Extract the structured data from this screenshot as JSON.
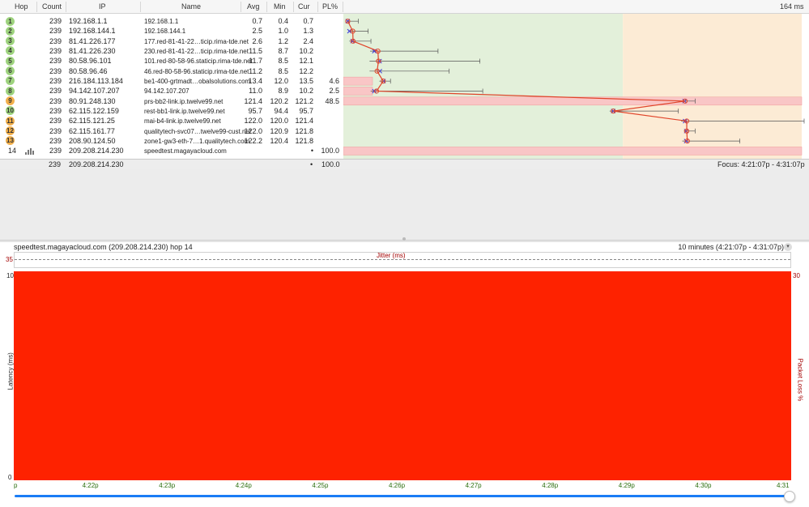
{
  "header": {
    "hop": "Hop",
    "count": "Count",
    "ip": "IP",
    "name": "Name",
    "avg": "Avg",
    "min": "Min",
    "cur": "Cur",
    "pl": "PL%",
    "scale_max": "164 ms"
  },
  "scale_max_ms": 164,
  "hops": [
    {
      "hop": "1",
      "count": "239",
      "ip": "192.168.1.1",
      "name": "192.168.1.1",
      "avg": "0.7",
      "min": "0.4",
      "cur": "0.7",
      "pl": "",
      "max_ms": 4.5,
      "pl_val": 0,
      "color": "#9ed37e"
    },
    {
      "hop": "2",
      "count": "239",
      "ip": "192.168.144.1",
      "name": "192.168.144.1",
      "avg": "2.5",
      "min": "1.0",
      "cur": "1.3",
      "pl": "",
      "max_ms": 8,
      "pl_val": 0,
      "color": "#9ed37e"
    },
    {
      "hop": "3",
      "count": "239",
      "ip": "81.41.226.177",
      "name": "177.red-81-41-22…ticip.rima-tde.net",
      "avg": "2.6",
      "min": "1.2",
      "cur": "2.4",
      "pl": "",
      "max_ms": 9,
      "pl_val": 0,
      "color": "#9ed37e"
    },
    {
      "hop": "4",
      "count": "239",
      "ip": "81.41.226.230",
      "name": "230.red-81-41-22…ticip.rima-tde.net",
      "avg": "11.5",
      "min": "8.7",
      "cur": "10.2",
      "pl": "",
      "max_ms": 33,
      "pl_val": 0,
      "color": "#9ed37e"
    },
    {
      "hop": "5",
      "count": "239",
      "ip": "80.58.96.101",
      "name": "101.red-80-58-96.staticip.rima-tde.net",
      "avg": "11.7",
      "min": "8.5",
      "cur": "12.1",
      "pl": "",
      "max_ms": 48,
      "pl_val": 0,
      "color": "#9ed37e"
    },
    {
      "hop": "6",
      "count": "239",
      "ip": "80.58.96.46",
      "name": "46.red-80-58-96.staticip.rima-tde.net",
      "avg": "11.2",
      "min": "8.5",
      "cur": "12.2",
      "pl": "",
      "max_ms": 37,
      "pl_val": 0,
      "color": "#9ed37e"
    },
    {
      "hop": "7",
      "count": "239",
      "ip": "216.184.113.184",
      "name": "be1-400-grtmadt…obalsolutions.com",
      "avg": "13.4",
      "min": "12.0",
      "cur": "13.5",
      "pl": "4.6",
      "max_ms": 16,
      "pl_val": 4.6,
      "color": "#9ed37e"
    },
    {
      "hop": "8",
      "count": "239",
      "ip": "94.142.107.207",
      "name": "94.142.107.207",
      "avg": "11.0",
      "min": "8.9",
      "cur": "10.2",
      "pl": "2.5",
      "max_ms": 49,
      "pl_val": 2.5,
      "color": "#9ed37e"
    },
    {
      "hop": "9",
      "count": "239",
      "ip": "80.91.248.130",
      "name": "prs-bb2-link.ip.twelve99.net",
      "avg": "121.4",
      "min": "120.2",
      "cur": "121.2",
      "pl": "48.5",
      "max_ms": 125,
      "pl_val": 48.5,
      "color": "#f2b04c"
    },
    {
      "hop": "10",
      "count": "239",
      "ip": "62.115.122.159",
      "name": "rest-bb1-link.ip.twelve99.net",
      "avg": "95.7",
      "min": "94.4",
      "cur": "95.7",
      "pl": "",
      "max_ms": 119,
      "pl_val": 0,
      "color": "#9ed37e"
    },
    {
      "hop": "11",
      "count": "239",
      "ip": "62.115.121.25",
      "name": "mai-b4-link.ip.twelve99.net",
      "avg": "122.0",
      "min": "120.0",
      "cur": "121.4",
      "pl": "",
      "max_ms": 164,
      "pl_val": 0,
      "color": "#f2b04c"
    },
    {
      "hop": "12",
      "count": "239",
      "ip": "62.115.161.77",
      "name": "qualitytech-svc07…twelve99-cust.net",
      "avg": "122.0",
      "min": "120.9",
      "cur": "121.8",
      "pl": "",
      "max_ms": 125,
      "pl_val": 0,
      "color": "#f2b04c"
    },
    {
      "hop": "13",
      "count": "239",
      "ip": "208.90.124.50",
      "name": "zone1-gw3-eth-7…1.qualitytech.com",
      "avg": "122.2",
      "min": "120.4",
      "cur": "121.8",
      "pl": "",
      "max_ms": 141,
      "pl_val": 0,
      "color": "#f2b04c"
    },
    {
      "hop": "14",
      "count": "239",
      "ip": "209.208.214.230",
      "name": "speedtest.magayacloud.com",
      "avg": "",
      "min": "",
      "cur": "•",
      "pl": "100.0",
      "max_ms": 0,
      "pl_val": 100,
      "color": ""
    }
  ],
  "summary": {
    "count": "239",
    "ip": "209.208.214.230",
    "cur": "•",
    "pl": "100.0",
    "focus": "Focus: 4:21:07p - 4:31:07p"
  },
  "graph": {
    "title": "speedtest.magayacloud.com (209.208.214.230) hop 14",
    "range": "10 minutes (4:21:07p - 4:31:07p)",
    "jitter_label": "Jitter (ms)",
    "jitter_max": "35",
    "y_max": "10",
    "y_min": "0",
    "y_label": "Latency (ms)",
    "pl_max": "30",
    "pl_label": "Packet Loss %",
    "x_ticks": [
      "p",
      "4:22p",
      "4:23p",
      "4:24p",
      "4:25p",
      "4:26p",
      "4:27p",
      "4:28p",
      "4:29p",
      "4:30p",
      "4:31"
    ],
    "fill_color": "#fe2200"
  }
}
